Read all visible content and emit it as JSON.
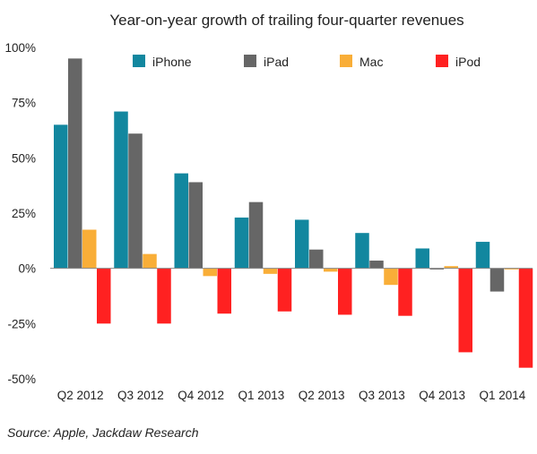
{
  "chart_data": {
    "type": "bar",
    "title": "Year-on-year growth of trailing four-quarter revenues",
    "xlabel": "",
    "ylabel": "",
    "categories": [
      "Q2 2012",
      "Q3 2012",
      "Q4 2012",
      "Q1 2013",
      "Q2 2013",
      "Q3 2013",
      "Q4 2013",
      "Q1 2014"
    ],
    "series": [
      {
        "name": "iPhone",
        "color": "#12879f",
        "values": [
          65,
          71,
          43,
          23,
          22,
          16,
          9,
          12
        ]
      },
      {
        "name": "iPad",
        "color": "#666666",
        "values": [
          95,
          61,
          39,
          30,
          8.5,
          3.5,
          -0.5,
          -10.5
        ]
      },
      {
        "name": "Mac",
        "color": "#f9ae38",
        "values": [
          17.5,
          6.5,
          -3.5,
          -2.5,
          -1.5,
          -7.5,
          1,
          -0.5
        ]
      },
      {
        "name": "iPod",
        "color": "#ff2121",
        "values": [
          -25,
          -25,
          -20.5,
          -19.5,
          -21,
          -21.5,
          -38,
          -45
        ]
      }
    ],
    "ylim": [
      -50,
      100
    ],
    "yticks": [
      -50,
      -25,
      0,
      25,
      50,
      75,
      100
    ],
    "ytick_labels": [
      "-50%",
      "-25%",
      "0%",
      "25%",
      "50%",
      "75%",
      "100%"
    ],
    "grid": false,
    "legend_position": "top"
  },
  "source": "Source: Apple, Jackdaw Research"
}
